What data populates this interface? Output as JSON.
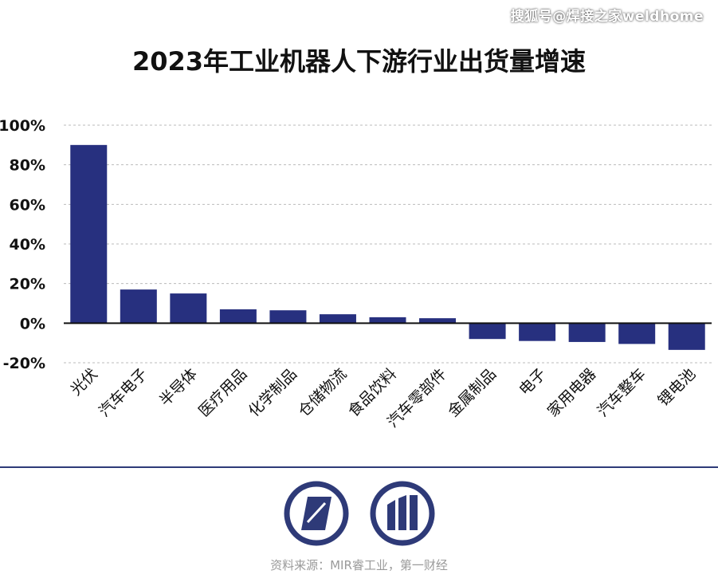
{
  "watermark": "搜狐号@焊接之家weldhome",
  "source": "资料来源：MIR睿工业，第一财经",
  "colors": {
    "bar": "#27307f",
    "grid": "#bbbbbb",
    "axis": "#111111",
    "brand": "#2e3a78"
  },
  "icons": [
    "parallelogram-logo-icon",
    "bars-logo-icon"
  ],
  "chart_data": {
    "type": "bar",
    "title": "2023年工业机器人下游行业出货量增速",
    "categories": [
      "光伏",
      "汽车电子",
      "半导体",
      "医疗用品",
      "化学制品",
      "仓储物流",
      "食品饮料",
      "汽车零部件",
      "金属制品",
      "电子",
      "家用电器",
      "汽车整车",
      "锂电池"
    ],
    "values": [
      90,
      17,
      15,
      7,
      6.5,
      4.5,
      3,
      2.5,
      -8,
      -9,
      -9.5,
      -10.5,
      -13.5
    ],
    "yticks": [
      "100%",
      "80%",
      "60%",
      "40%",
      "20%",
      "0%",
      "-20%"
    ],
    "ylim": [
      -20,
      100
    ],
    "grid": true,
    "legend": "none"
  }
}
